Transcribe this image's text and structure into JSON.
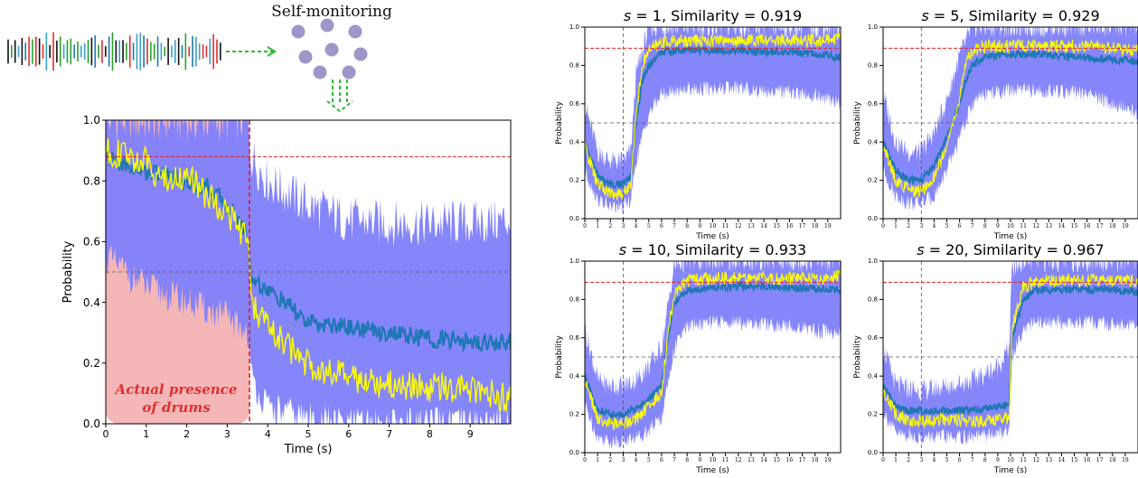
{
  "header": {
    "self_monitoring_label": "Self-monitoring"
  },
  "main_panel": {
    "annotation_line1": "Actual presence",
    "annotation_line2": "of drums"
  },
  "colors": {
    "band": "#7f7ffb",
    "mean": "#1f77b4",
    "truth": "#ffff00",
    "threshold": "#e02020",
    "shade": "#f4b6b6",
    "arrow": "#2dbb2d",
    "dot": "#9f95c8",
    "annotation": "#e03030"
  },
  "chart_data": [
    {
      "type": "line",
      "id": "main",
      "xlabel": "Time (s)",
      "ylabel": "Probability",
      "xlim": [
        0,
        10
      ],
      "ylim": [
        0,
        1
      ],
      "xticks": [
        0,
        1,
        2,
        3,
        4,
        5,
        6,
        7,
        8,
        9
      ],
      "yticks": [
        0.0,
        0.2,
        0.4,
        0.6,
        0.8,
        1.0
      ],
      "ytick_labels": [
        "0.0",
        "0.2",
        "0.4",
        "0.6",
        "0.8",
        "1.0"
      ],
      "threshold_high": 0.88,
      "threshold_mid": 0.5,
      "vline": 3.55,
      "shaded_region": [
        0,
        3.55
      ],
      "series": [
        {
          "x": [
            0,
            0.5,
            1,
            1.5,
            2,
            2.5,
            3,
            3.5,
            3.6,
            4,
            4.5,
            5,
            6,
            7,
            8,
            9,
            10
          ],
          "values": [
            0.88,
            0.85,
            0.83,
            0.82,
            0.8,
            0.78,
            0.72,
            0.62,
            0.48,
            0.44,
            0.39,
            0.33,
            0.32,
            0.3,
            0.28,
            0.27,
            0.27
          ]
        },
        {
          "x": [
            0,
            0.5,
            1,
            1.5,
            2,
            2.5,
            3,
            3.5,
            3.6,
            4,
            4.5,
            5,
            6,
            7,
            8,
            9,
            10
          ],
          "values": [
            0.9,
            0.88,
            0.86,
            0.8,
            0.82,
            0.75,
            0.7,
            0.6,
            0.4,
            0.32,
            0.25,
            0.2,
            0.15,
            0.13,
            0.12,
            0.12,
            0.08
          ]
        }
      ],
      "band": {
        "x": [
          0,
          0.5,
          1,
          2,
          3,
          3.5,
          3.6,
          4,
          5,
          6,
          7,
          8,
          9,
          10
        ],
        "lower": [
          0.55,
          0.5,
          0.45,
          0.4,
          0.35,
          0.3,
          0.15,
          0.05,
          0.02,
          0.0,
          0.0,
          0.0,
          0.0,
          0.0
        ],
        "upper": [
          1.0,
          1.0,
          1.0,
          1.0,
          1.0,
          1.0,
          0.88,
          0.8,
          0.72,
          0.67,
          0.66,
          0.66,
          0.66,
          0.67
        ]
      }
    },
    {
      "type": "line",
      "id": "s1",
      "title_prefix": "s",
      "title_rest": " = 1,   Similarity = 0.919",
      "xlabel": "Time (s)",
      "ylabel": "Probability",
      "xlim": [
        0,
        20
      ],
      "ylim": [
        0,
        1
      ],
      "xticks": [
        0,
        1,
        2,
        3,
        4,
        5,
        6,
        7,
        8,
        9,
        10,
        11,
        12,
        13,
        14,
        15,
        16,
        17,
        18,
        19
      ],
      "yticks": [
        0.0,
        0.2,
        0.4,
        0.6,
        0.8,
        1.0
      ],
      "ytick_labels": [
        "0.0",
        "0.2",
        "0.4",
        "0.6",
        "0.8",
        "1.0"
      ],
      "threshold_high": 0.89,
      "threshold_mid": 0.5,
      "vline": 3,
      "series": [
        {
          "x": [
            0,
            1,
            2,
            3,
            3.6,
            4,
            4.5,
            5,
            6,
            8,
            10,
            12,
            14,
            16,
            18,
            20
          ],
          "values": [
            0.4,
            0.22,
            0.18,
            0.18,
            0.22,
            0.5,
            0.72,
            0.8,
            0.87,
            0.88,
            0.88,
            0.88,
            0.87,
            0.87,
            0.86,
            0.84
          ]
        },
        {
          "x": [
            0,
            1,
            2,
            3,
            3.6,
            4,
            4.5,
            5,
            6,
            8,
            10,
            12,
            14,
            16,
            18,
            20
          ],
          "values": [
            0.38,
            0.18,
            0.13,
            0.13,
            0.18,
            0.55,
            0.8,
            0.88,
            0.92,
            0.93,
            0.93,
            0.93,
            0.93,
            0.93,
            0.93,
            0.94
          ]
        }
      ],
      "band": {
        "x": [
          0,
          1,
          2,
          3,
          3.6,
          4,
          5,
          6,
          8,
          10,
          12,
          14,
          16,
          18,
          20
        ],
        "lower": [
          0.25,
          0.1,
          0.06,
          0.06,
          0.1,
          0.3,
          0.55,
          0.65,
          0.68,
          0.68,
          0.68,
          0.67,
          0.66,
          0.64,
          0.6
        ],
        "upper": [
          0.6,
          0.35,
          0.3,
          0.3,
          0.35,
          0.75,
          1.0,
          1.0,
          1.0,
          1.0,
          1.0,
          1.0,
          1.0,
          1.0,
          1.0
        ]
      }
    },
    {
      "type": "line",
      "id": "s5",
      "title_prefix": "s",
      "title_rest": " = 5,   Similarity = 0.929",
      "xlabel": "Time (s)",
      "ylabel": "Probability",
      "xlim": [
        0,
        20
      ],
      "ylim": [
        0,
        1
      ],
      "xticks": [
        0,
        1,
        2,
        3,
        4,
        5,
        6,
        7,
        8,
        9,
        10,
        11,
        12,
        13,
        14,
        15,
        16,
        17,
        18,
        19
      ],
      "yticks": [
        0.0,
        0.2,
        0.4,
        0.6,
        0.8,
        1.0
      ],
      "ytick_labels": [
        "0.0",
        "0.2",
        "0.4",
        "0.6",
        "0.8",
        "1.0"
      ],
      "threshold_high": 0.89,
      "threshold_mid": 0.5,
      "vline": 3,
      "series": [
        {
          "x": [
            0,
            1,
            2,
            3,
            4,
            5,
            6,
            6.5,
            7,
            8,
            10,
            12,
            14,
            16,
            18,
            20
          ],
          "values": [
            0.4,
            0.25,
            0.2,
            0.2,
            0.28,
            0.42,
            0.6,
            0.72,
            0.8,
            0.85,
            0.86,
            0.86,
            0.85,
            0.84,
            0.83,
            0.82
          ]
        },
        {
          "x": [
            0,
            1,
            2,
            3,
            4,
            5,
            6,
            6.5,
            7,
            8,
            10,
            12,
            14,
            16,
            18,
            20
          ],
          "values": [
            0.38,
            0.2,
            0.15,
            0.14,
            0.22,
            0.38,
            0.62,
            0.82,
            0.88,
            0.9,
            0.9,
            0.9,
            0.9,
            0.9,
            0.89,
            0.88
          ]
        }
      ],
      "band": {
        "x": [
          0,
          1,
          2,
          3,
          4,
          5,
          6,
          7,
          8,
          10,
          12,
          14,
          16,
          18,
          20
        ],
        "lower": [
          0.25,
          0.12,
          0.08,
          0.08,
          0.12,
          0.25,
          0.42,
          0.6,
          0.65,
          0.67,
          0.67,
          0.66,
          0.65,
          0.6,
          0.55
        ],
        "upper": [
          0.65,
          0.4,
          0.35,
          0.35,
          0.45,
          0.62,
          0.85,
          1.0,
          1.0,
          1.0,
          1.0,
          1.0,
          1.0,
          1.0,
          1.0
        ]
      }
    },
    {
      "type": "line",
      "id": "s10",
      "title_prefix": "s",
      "title_rest": " = 10,   Similarity = 0.933",
      "xlabel": "Time (s)",
      "ylabel": "Probability",
      "xlim": [
        0,
        20
      ],
      "ylim": [
        0,
        1
      ],
      "xticks": [
        0,
        1,
        2,
        3,
        4,
        5,
        6,
        7,
        8,
        9,
        10,
        11,
        12,
        13,
        14,
        15,
        16,
        17,
        18,
        19
      ],
      "yticks": [
        0.0,
        0.2,
        0.4,
        0.6,
        0.8,
        1.0
      ],
      "ytick_labels": [
        "0.0",
        "0.2",
        "0.4",
        "0.6",
        "0.8",
        "1.0"
      ],
      "threshold_high": 0.89,
      "threshold_mid": 0.5,
      "vline": 3,
      "series": [
        {
          "x": [
            0,
            1,
            2,
            3,
            4,
            5,
            6,
            6.5,
            7,
            8,
            10,
            12,
            14,
            16,
            18,
            20
          ],
          "values": [
            0.4,
            0.22,
            0.2,
            0.2,
            0.23,
            0.28,
            0.35,
            0.6,
            0.78,
            0.85,
            0.86,
            0.87,
            0.87,
            0.86,
            0.86,
            0.85
          ]
        },
        {
          "x": [
            0,
            1,
            2,
            3,
            4,
            5,
            6,
            6.5,
            7,
            8,
            10,
            12,
            14,
            16,
            18,
            20
          ],
          "values": [
            0.38,
            0.18,
            0.15,
            0.15,
            0.18,
            0.24,
            0.32,
            0.62,
            0.84,
            0.9,
            0.91,
            0.91,
            0.91,
            0.91,
            0.91,
            0.92
          ]
        }
      ],
      "band": {
        "x": [
          0,
          1,
          2,
          3,
          4,
          5,
          6,
          7,
          8,
          10,
          12,
          14,
          16,
          18,
          20
        ],
        "lower": [
          0.25,
          0.08,
          0.06,
          0.06,
          0.08,
          0.12,
          0.18,
          0.55,
          0.66,
          0.68,
          0.68,
          0.67,
          0.66,
          0.64,
          0.62
        ],
        "upper": [
          0.65,
          0.38,
          0.35,
          0.35,
          0.38,
          0.45,
          0.55,
          0.98,
          1.0,
          1.0,
          1.0,
          1.0,
          1.0,
          1.0,
          1.0
        ]
      }
    },
    {
      "type": "line",
      "id": "s20",
      "title_prefix": "s",
      "title_rest": " = 20,   Similarity = 0.967",
      "xlabel": "Time (s)",
      "ylabel": "Probability",
      "xlim": [
        0,
        20
      ],
      "ylim": [
        0,
        1
      ],
      "xticks": [
        0,
        1,
        2,
        3,
        4,
        5,
        6,
        7,
        8,
        9,
        10,
        11,
        12,
        13,
        14,
        15,
        16,
        17,
        18,
        19
      ],
      "yticks": [
        0.0,
        0.2,
        0.4,
        0.6,
        0.8,
        1.0
      ],
      "ytick_labels": [
        "0.0",
        "0.2",
        "0.4",
        "0.6",
        "0.8",
        "1.0"
      ],
      "threshold_high": 0.89,
      "threshold_mid": 0.5,
      "vline": 3,
      "series": [
        {
          "x": [
            0,
            1,
            2,
            3,
            4,
            5,
            6,
            7,
            8,
            9,
            9.9,
            10.1,
            11,
            12,
            14,
            16,
            18,
            20
          ],
          "values": [
            0.35,
            0.24,
            0.22,
            0.22,
            0.22,
            0.22,
            0.22,
            0.22,
            0.23,
            0.24,
            0.25,
            0.6,
            0.8,
            0.85,
            0.85,
            0.85,
            0.85,
            0.84
          ]
        },
        {
          "x": [
            0,
            1,
            2,
            3,
            4,
            5,
            6,
            7,
            8,
            9,
            9.9,
            10.1,
            11,
            12,
            14,
            16,
            18,
            20
          ],
          "values": [
            0.33,
            0.2,
            0.17,
            0.16,
            0.17,
            0.17,
            0.17,
            0.16,
            0.17,
            0.18,
            0.18,
            0.65,
            0.86,
            0.9,
            0.9,
            0.9,
            0.9,
            0.9
          ]
        }
      ],
      "band": {
        "x": [
          0,
          1,
          3,
          5,
          7,
          9,
          9.9,
          10.1,
          11,
          12,
          14,
          16,
          18,
          20
        ],
        "lower": [
          0.22,
          0.1,
          0.08,
          0.08,
          0.08,
          0.1,
          0.12,
          0.5,
          0.65,
          0.68,
          0.68,
          0.68,
          0.67,
          0.66
        ],
        "upper": [
          0.55,
          0.35,
          0.32,
          0.35,
          0.38,
          0.45,
          0.55,
          0.95,
          1.0,
          1.0,
          1.0,
          1.0,
          1.0,
          1.0
        ]
      }
    }
  ]
}
